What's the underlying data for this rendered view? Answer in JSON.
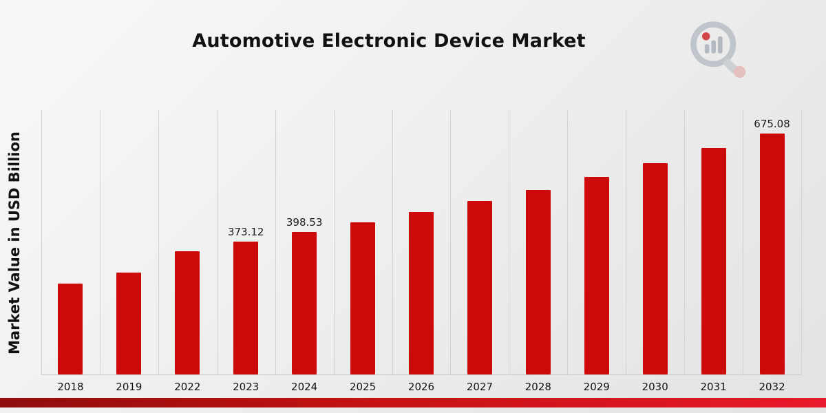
{
  "header": {
    "title": "Automotive Electronic Device Market"
  },
  "logo": {
    "name": "market-research-magnifier-logo",
    "glass_color": "#b9bfc6",
    "bar_color": "#aab1b9",
    "accent_color": "#d22b2b"
  },
  "chart_data": {
    "type": "bar",
    "title": "Automotive Electronic Device Market",
    "xlabel": "",
    "ylabel": "Market Value in USD Billion",
    "units": "USD Billion",
    "bar_color": "#cc0a0a",
    "grid": "vertical-only",
    "legend": "none",
    "ylim": [
      0,
      742
    ],
    "categories": [
      "2018",
      "2019",
      "2022",
      "2023",
      "2024",
      "2025",
      "2026",
      "2027",
      "2028",
      "2029",
      "2030",
      "2031",
      "2032"
    ],
    "values": [
      255,
      285,
      345,
      373.12,
      398.53,
      427,
      455,
      486,
      517,
      553,
      592,
      634,
      675.08
    ],
    "data_labels": [
      null,
      null,
      null,
      "373.12",
      "398.53",
      null,
      null,
      null,
      null,
      null,
      null,
      null,
      "675.08"
    ]
  },
  "footer": {
    "ribbon_gradient": [
      "#8f0d0d",
      "#c41212",
      "#e8192c"
    ]
  }
}
